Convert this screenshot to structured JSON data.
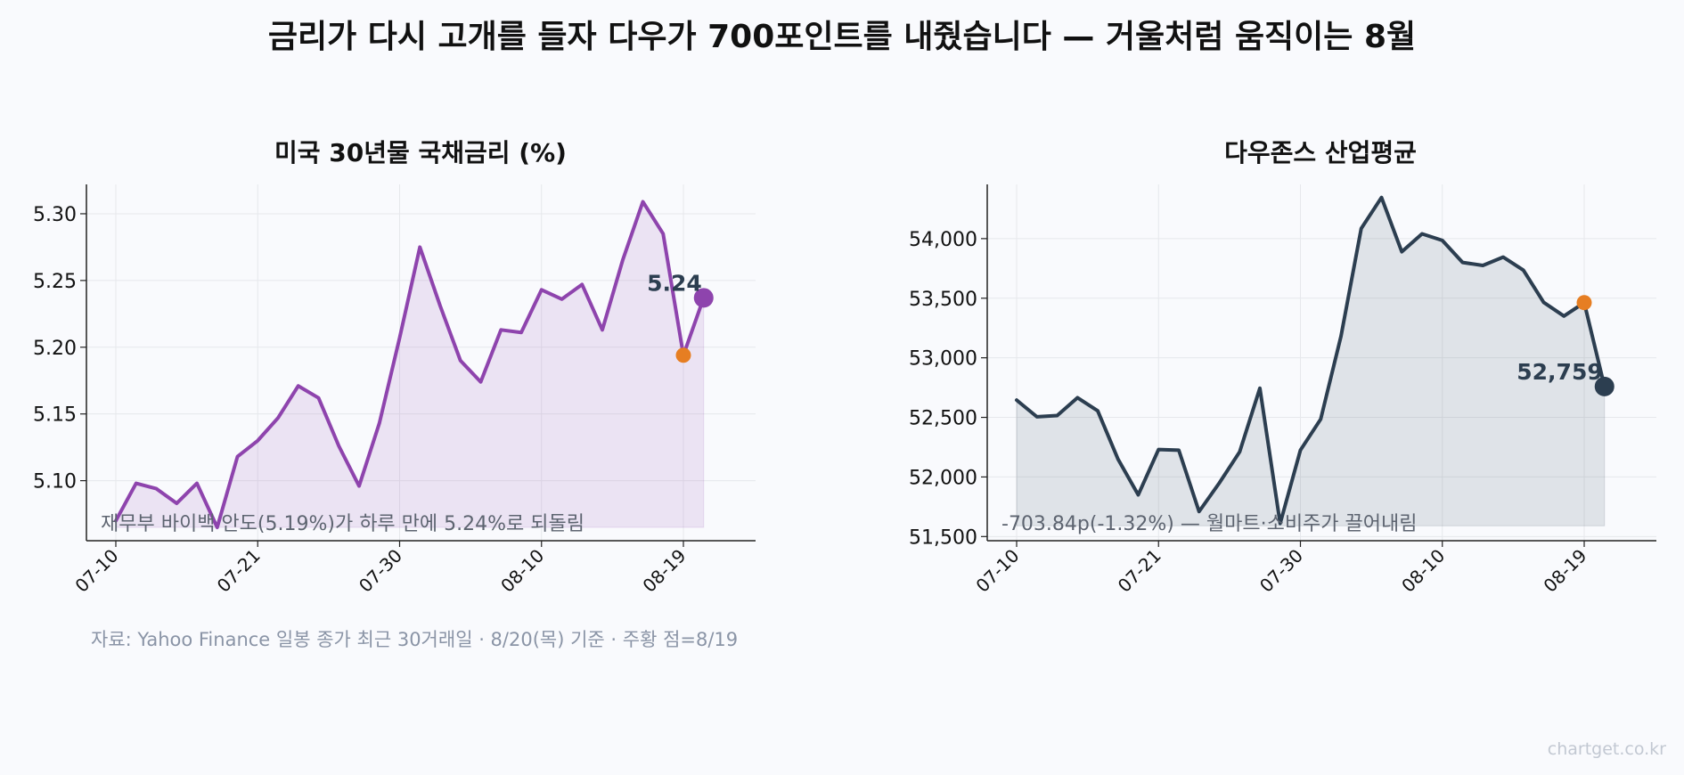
{
  "title": "금리가 다시 고개를 들자 다우가 700포인트를 내줬습니다 — 거울처럼 움직이는 8월",
  "source": "자료: Yahoo Finance 일봉 종가 최근 30거래일 · 8/20(목) 기준 · 주황 점=8/19",
  "watermark": "chartget.co.kr",
  "colors": {
    "left_series": "#8e44ad",
    "right_series": "#2c3e50",
    "highlight": "#e67e22",
    "annotation_text": "#5d6470"
  },
  "chart_data": [
    {
      "type": "area",
      "title": "미국 30년물 국채금리 (%)",
      "x_tick_labels": [
        "07-10",
        "07-21",
        "07-30",
        "08-10",
        "08-19"
      ],
      "x": [
        "07-10",
        "07-13",
        "07-14",
        "07-15",
        "07-16",
        "07-17",
        "07-20",
        "07-21",
        "07-22",
        "07-23",
        "07-24",
        "07-27",
        "07-28",
        "07-29",
        "07-30",
        "07-31",
        "08-03",
        "08-04",
        "08-05",
        "08-06",
        "08-07",
        "08-10",
        "08-11",
        "08-12",
        "08-13",
        "08-14",
        "08-17",
        "08-18",
        "08-19",
        "08-20"
      ],
      "x_tick_index": [
        0,
        7,
        14,
        21,
        28
      ],
      "values": [
        5.07,
        5.098,
        5.094,
        5.083,
        5.098,
        5.065,
        5.118,
        5.13,
        5.147,
        5.171,
        5.162,
        5.126,
        5.096,
        5.143,
        5.207,
        5.275,
        5.231,
        5.19,
        5.174,
        5.213,
        5.211,
        5.243,
        5.236,
        5.247,
        5.213,
        5.265,
        5.309,
        5.285,
        5.194,
        5.237
      ],
      "ylim": [
        5.055,
        5.322
      ],
      "y_ticks": [
        5.1,
        5.15,
        5.2,
        5.25,
        5.3
      ],
      "y_tick_labels": [
        "5.10",
        "5.15",
        "5.20",
        "5.25",
        "5.30"
      ],
      "fill_base": 5.065,
      "grid": true,
      "last_label": "5.24",
      "highlight_index": 28,
      "annotation": "재무부 바이백 안도(5.19%)가 하루 만에 5.24%로 되돌림"
    },
    {
      "type": "area",
      "title": "다우존스 산업평균",
      "x_tick_labels": [
        "07-10",
        "07-21",
        "07-30",
        "08-10",
        "08-19"
      ],
      "x": [
        "07-10",
        "07-13",
        "07-14",
        "07-15",
        "07-16",
        "07-17",
        "07-20",
        "07-21",
        "07-22",
        "07-23",
        "07-24",
        "07-27",
        "07-28",
        "07-29",
        "07-30",
        "07-31",
        "08-03",
        "08-04",
        "08-05",
        "08-06",
        "08-07",
        "08-10",
        "08-11",
        "08-12",
        "08-13",
        "08-14",
        "08-17",
        "08-18",
        "08-19",
        "08-20"
      ],
      "x_tick_index": [
        0,
        7,
        14,
        21,
        28
      ],
      "values": [
        52645,
        52505,
        52515,
        52665,
        52555,
        52150,
        51850,
        52230,
        52225,
        51710,
        51950,
        52210,
        52745,
        51610,
        52225,
        52485,
        53180,
        54085,
        54345,
        53890,
        54040,
        53985,
        53800,
        53775,
        53845,
        53735,
        53465,
        53350,
        53463,
        52759
      ],
      "ylim": [
        51465,
        54455
      ],
      "y_ticks": [
        51500,
        52000,
        52500,
        53000,
        53500,
        54000
      ],
      "y_tick_labels": [
        "51,500",
        "52,000",
        "52,500",
        "53,000",
        "53,500",
        "54,000"
      ],
      "fill_base": 51590,
      "grid": true,
      "last_label": "52,759",
      "highlight_index": 28,
      "annotation": "-703.84p(-1.32%) — 월마트·소비주가 끌어내림"
    }
  ]
}
